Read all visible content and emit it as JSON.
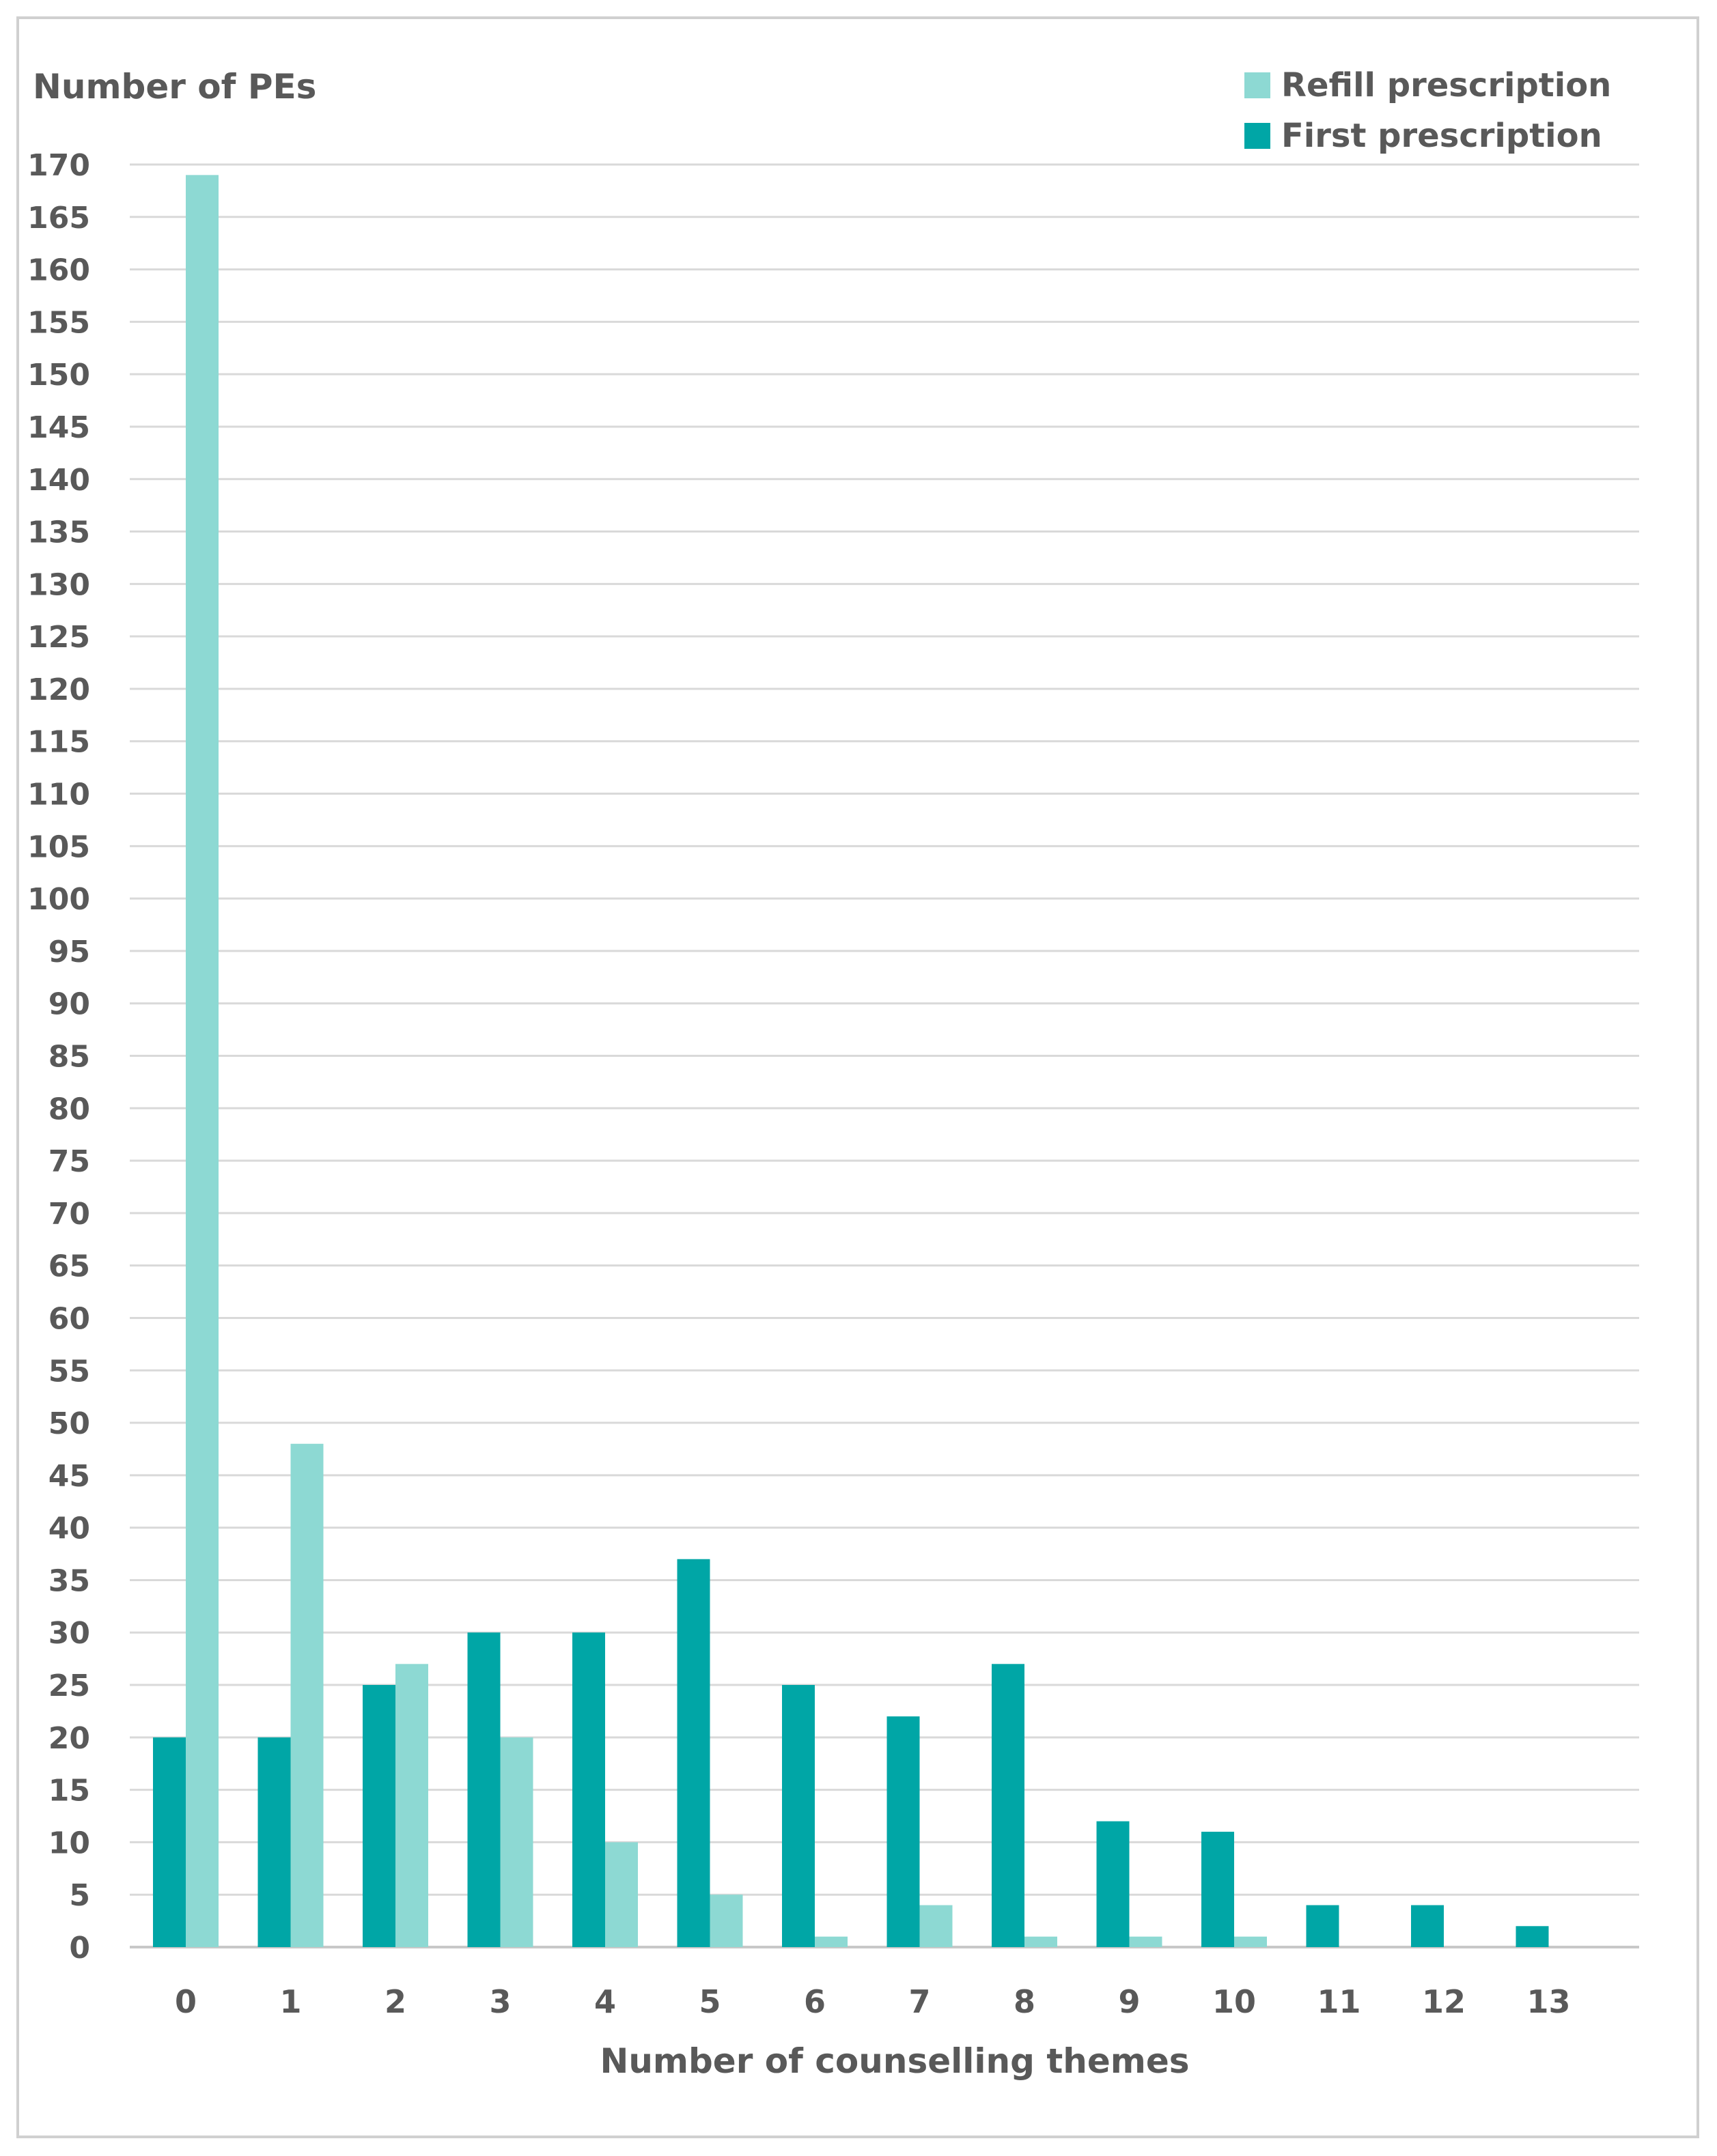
{
  "chart_data": {
    "type": "bar",
    "ylabel": "Number of PEs",
    "xlabel": "Number of counselling themes",
    "categories": [
      "0",
      "1",
      "2",
      "3",
      "4",
      "5",
      "6",
      "7",
      "8",
      "9",
      "10",
      "11",
      "12",
      "13"
    ],
    "series": [
      {
        "name": "First prescription",
        "color": "#00a6a6",
        "values": [
          20,
          20,
          25,
          30,
          30,
          37,
          25,
          22,
          27,
          12,
          11,
          4,
          4,
          2
        ]
      },
      {
        "name": "Refill prescription",
        "color": "#8dd9d3",
        "values": [
          169,
          48,
          27,
          20,
          10,
          5,
          1,
          4,
          1,
          1,
          1,
          0,
          0,
          0
        ]
      }
    ],
    "ylim": [
      0,
      170
    ],
    "yticks": [
      0,
      5,
      10,
      15,
      20,
      25,
      30,
      35,
      40,
      45,
      50,
      55,
      60,
      65,
      70,
      75,
      80,
      85,
      90,
      95,
      100,
      105,
      110,
      115,
      120,
      125,
      130,
      135,
      140,
      145,
      150,
      155,
      160,
      165,
      170
    ],
    "grid": true,
    "legend": "top-right",
    "legend_entries": [
      "Refill prescription",
      "First prescription"
    ]
  }
}
